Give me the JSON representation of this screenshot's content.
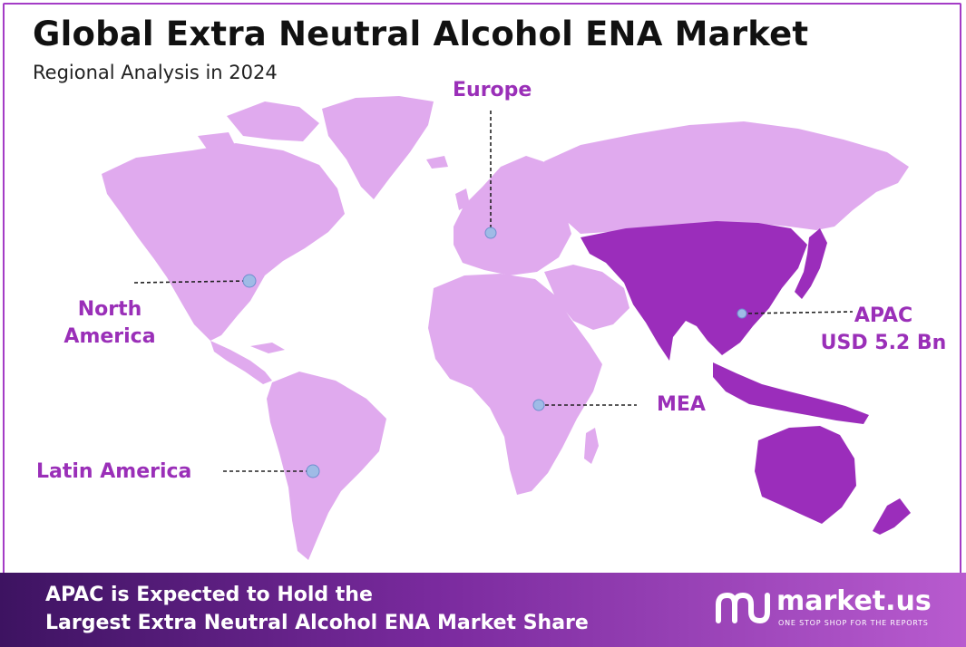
{
  "header": {
    "title": "Global Extra Neutral Alcohol ENA Market",
    "subtitle": "Regional Analysis in 2024"
  },
  "regions": {
    "europe": "Europe",
    "north_america_line1": "North",
    "north_america_line2": "America",
    "latin_america": "Latin America",
    "mea": "MEA",
    "apac_name": "APAC",
    "apac_value": "USD 5.2 Bn"
  },
  "highlighted_region": "APAC",
  "footer": {
    "line1": "APAC is Expected to Hold the",
    "line2": "Largest Extra Neutral Alcohol ENA Market Share"
  },
  "brand": {
    "name": "market.us",
    "tagline": "ONE STOP SHOP FOR THE REPORTS"
  },
  "colors": {
    "land": "#e0aaee",
    "highlight": "#9b2dbb",
    "label": "#9a2fb8",
    "marker": "#9fbbe6",
    "frame": "#a43cc6",
    "footer_start": "#3d1361",
    "footer_end": "#b85bcf"
  }
}
